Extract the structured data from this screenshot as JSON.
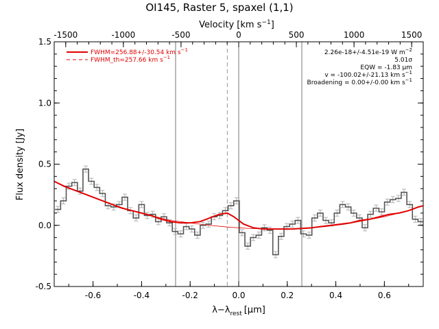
{
  "chart_data": {
    "type": "line",
    "title": "OI145, Raster 5, spaxel (1,1)",
    "xlabel_main": "λ−λ",
    "xlabel_sub": "rest",
    "xlabel_unit": "[μm]",
    "ylabel": "Flux density [Jy]",
    "top_axis_label_main": "Velocity [km s",
    "top_axis_label_sup": "−1",
    "top_axis_label_end": "]",
    "xlim": [
      -0.76,
      0.76
    ],
    "ylim": [
      -0.5,
      1.5
    ],
    "top_xlim": [
      -1600,
      1600
    ],
    "x_ticks": [
      "-0.6",
      "-0.4",
      "-0.2",
      "0.0",
      "0.2",
      "0.4",
      "0.6"
    ],
    "x_tick_values": [
      -0.6,
      -0.4,
      -0.2,
      0.0,
      0.2,
      0.4,
      0.6
    ],
    "y_ticks": [
      "-0.5",
      "0.0",
      "0.5",
      "1.0",
      "1.5"
    ],
    "y_tick_values": [
      -0.5,
      0.0,
      0.5,
      1.0,
      1.5
    ],
    "top_ticks": [
      "-1500",
      "-1000",
      "-500",
      "0",
      "500",
      "1000",
      "1500"
    ],
    "top_tick_values": [
      -1500,
      -1000,
      -500,
      0,
      500,
      1000,
      1500
    ],
    "vertical_lines": [
      -0.26,
      0.0,
      0.26
    ],
    "dashed_line": -0.047,
    "legend": [
      {
        "label": "FWHM=256.88+/-30.54 km s",
        "sup": "−1",
        "style": "solid"
      },
      {
        "label": "FWHM_th=257.66 km s",
        "sup": "−1",
        "style": "dashed"
      }
    ],
    "annotations": [
      {
        "text": "2.26e-18+/-4.51e-19 W m",
        "sup": "−2"
      },
      {
        "text": "5.01σ",
        "sup": ""
      },
      {
        "text": "EQW = -1.83 μm",
        "sup": ""
      },
      {
        "text": "v = -100.02+/-21.13 km s",
        "sup": "−1"
      },
      {
        "text": "Broadening = 0.00+/-0.00 km s",
        "sup": "−1"
      }
    ],
    "series": [
      {
        "name": "data",
        "style": "histogram",
        "x": [
          -0.745,
          -0.722,
          -0.699,
          -0.676,
          -0.653,
          -0.63,
          -0.607,
          -0.584,
          -0.561,
          -0.538,
          -0.515,
          -0.492,
          -0.469,
          -0.446,
          -0.423,
          -0.4,
          -0.377,
          -0.354,
          -0.331,
          -0.308,
          -0.285,
          -0.262,
          -0.239,
          -0.216,
          -0.193,
          -0.17,
          -0.147,
          -0.124,
          -0.101,
          -0.078,
          -0.055,
          -0.032,
          -0.009,
          0.014,
          0.037,
          0.06,
          0.083,
          0.106,
          0.129,
          0.152,
          0.175,
          0.198,
          0.221,
          0.244,
          0.267,
          0.29,
          0.313,
          0.336,
          0.359,
          0.382,
          0.405,
          0.428,
          0.451,
          0.474,
          0.497,
          0.52,
          0.543,
          0.566,
          0.589,
          0.612,
          0.635,
          0.658,
          0.681,
          0.704,
          0.727,
          0.75
        ],
        "y": [
          0.13,
          0.2,
          0.32,
          0.35,
          0.28,
          0.46,
          0.36,
          0.31,
          0.26,
          0.16,
          0.15,
          0.17,
          0.23,
          0.12,
          0.06,
          0.17,
          0.08,
          0.09,
          0.03,
          0.07,
          0.02,
          -0.05,
          -0.07,
          -0.01,
          -0.03,
          -0.08,
          0.0,
          0.01,
          0.07,
          0.08,
          0.12,
          0.16,
          0.2,
          -0.06,
          -0.17,
          -0.1,
          -0.08,
          -0.02,
          -0.04,
          -0.24,
          -0.09,
          -0.01,
          0.01,
          0.04,
          -0.07,
          -0.08,
          0.06,
          0.1,
          0.04,
          0.02,
          0.1,
          0.17,
          0.15,
          0.1,
          0.06,
          -0.02,
          0.09,
          0.14,
          0.11,
          0.19,
          0.21,
          0.22,
          0.27,
          0.17,
          0.05,
          0.03
        ]
      },
      {
        "name": "fit",
        "style": "line",
        "x": [
          -0.76,
          -0.72,
          -0.68,
          -0.64,
          -0.6,
          -0.56,
          -0.52,
          -0.48,
          -0.44,
          -0.4,
          -0.36,
          -0.32,
          -0.28,
          -0.24,
          -0.2,
          -0.16,
          -0.12,
          -0.08,
          -0.047,
          -0.02,
          0.02,
          0.06,
          0.1,
          0.14,
          0.18,
          0.22,
          0.26,
          0.3,
          0.34,
          0.38,
          0.42,
          0.46,
          0.5,
          0.54,
          0.58,
          0.62,
          0.66,
          0.7,
          0.74,
          0.76
        ],
        "y": [
          0.36,
          0.32,
          0.29,
          0.26,
          0.23,
          0.2,
          0.17,
          0.14,
          0.12,
          0.1,
          0.08,
          0.05,
          0.03,
          0.02,
          0.02,
          0.03,
          0.06,
          0.09,
          0.1,
          0.07,
          0.01,
          -0.02,
          -0.03,
          -0.03,
          -0.03,
          -0.03,
          -0.025,
          -0.02,
          -0.01,
          0.0,
          0.01,
          0.02,
          0.04,
          0.05,
          0.07,
          0.09,
          0.1,
          0.12,
          0.15,
          0.16
        ]
      },
      {
        "name": "continuum",
        "style": "thin",
        "x": [
          -0.76,
          -0.68,
          -0.6,
          -0.52,
          -0.44,
          -0.36,
          -0.28,
          -0.2,
          -0.12,
          -0.04,
          0.04,
          0.12,
          0.2,
          0.28,
          0.36,
          0.44,
          0.52,
          0.6,
          0.68,
          0.76
        ],
        "y": [
          0.36,
          0.29,
          0.23,
          0.17,
          0.12,
          0.08,
          0.04,
          0.02,
          0.0,
          -0.015,
          -0.025,
          -0.03,
          -0.03,
          -0.025,
          -0.01,
          0.01,
          0.04,
          0.07,
          0.11,
          0.16
        ]
      }
    ],
    "colors": {
      "data": "#555555",
      "errorbars": "#b0b0b0",
      "fit": "#e00000",
      "vlines": "#777777"
    }
  }
}
